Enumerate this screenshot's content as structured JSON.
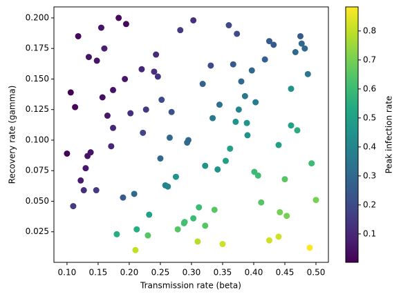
{
  "chart_data": {
    "type": "scatter",
    "x_label": "Transmission rate (beta)",
    "y_label": "Recovery rate (gamma)",
    "colorbar_label": "Peak infection rate",
    "colormap": "viridis",
    "x": [
      0.183,
      0.195,
      0.155,
      0.118,
      0.16,
      0.135,
      0.148,
      0.243,
      0.282,
      0.303,
      0.36,
      0.373,
      0.425,
      0.432,
      0.475,
      0.477,
      0.482,
      0.467,
      0.418,
      0.367,
      0.331,
      0.22,
      0.24,
      0.246,
      0.193,
      0.174,
      0.106,
      0.157,
      0.252,
      0.227,
      0.113,
      0.202,
      0.165,
      0.318,
      0.38,
      0.397,
      0.487,
      0.46,
      0.386,
      0.345,
      0.403,
      0.268,
      0.376,
      0.334,
      0.371,
      0.389,
      0.46,
      0.47,
      0.39,
      0.174,
      0.1,
      0.222,
      0.171,
      0.265,
      0.295,
      0.293,
      0.138,
      0.133,
      0.25,
      0.362,
      0.44,
      0.13,
      0.122,
      0.275,
      0.322,
      0.342,
      0.355,
      0.401,
      0.407,
      0.493,
      0.258,
      0.262,
      0.127,
      0.147,
      0.19,
      0.208,
      0.11,
      0.45,
      0.5,
      0.412,
      0.312,
      0.337,
      0.442,
      0.453,
      0.232,
      0.303,
      0.289,
      0.288,
      0.322,
      0.212,
      0.278,
      0.18,
      0.23,
      0.44,
      0.425,
      0.31,
      0.35,
      0.21,
      0.49
    ],
    "values": [
      0.2,
      0.195,
      0.192,
      0.185,
      0.175,
      0.168,
      0.165,
      0.17,
      0.19,
      0.198,
      0.194,
      0.187,
      0.181,
      0.178,
      0.185,
      0.179,
      0.175,
      0.172,
      0.166,
      0.162,
      0.161,
      0.158,
      0.156,
      0.152,
      0.15,
      0.141,
      0.139,
      0.135,
      0.133,
      0.125,
      0.127,
      0.122,
      0.12,
      0.146,
      0.148,
      0.157,
      0.154,
      0.142,
      0.136,
      0.129,
      0.131,
      0.123,
      0.125,
      0.118,
      0.115,
      0.114,
      0.112,
      0.108,
      0.104,
      0.11,
      0.089,
      0.106,
      0.095,
      0.102,
      0.1,
      0.098,
      0.09,
      0.087,
      0.085,
      0.093,
      0.096,
      0.077,
      0.067,
      0.07,
      0.079,
      0.076,
      0.083,
      0.074,
      0.071,
      0.081,
      0.063,
      0.062,
      0.059,
      0.059,
      0.053,
      0.056,
      0.046,
      0.068,
      0.051,
      0.049,
      0.045,
      0.043,
      0.041,
      0.038,
      0.039,
      0.036,
      0.033,
      0.032,
      0.03,
      0.027,
      0.027,
      0.023,
      0.022,
      0.021,
      0.018,
      0.017,
      0.015,
      0.01,
      0.012
    ],
    "color_values": [
      0.02,
      0.02,
      0.05,
      0.02,
      0.08,
      0.05,
      0.05,
      0.1,
      0.15,
      0.12,
      0.2,
      0.2,
      0.25,
      0.25,
      0.25,
      0.3,
      0.3,
      0.3,
      0.27,
      0.25,
      0.2,
      0.1,
      0.12,
      0.13,
      0.06,
      0.05,
      0.0,
      0.04,
      0.2,
      0.15,
      0.01,
      0.12,
      0.06,
      0.28,
      0.3,
      0.3,
      0.35,
      0.45,
      0.35,
      0.33,
      0.37,
      0.22,
      0.4,
      0.35,
      0.45,
      0.45,
      0.5,
      0.55,
      0.45,
      0.1,
      0.0,
      0.18,
      0.1,
      0.3,
      0.3,
      0.3,
      0.05,
      0.05,
      0.3,
      0.5,
      0.5,
      0.06,
      0.07,
      0.45,
      0.45,
      0.45,
      0.5,
      0.6,
      0.6,
      0.6,
      0.4,
      0.4,
      0.12,
      0.15,
      0.25,
      0.3,
      0.15,
      0.65,
      0.7,
      0.65,
      0.6,
      0.65,
      0.7,
      0.7,
      0.5,
      0.6,
      0.62,
      0.62,
      0.65,
      0.55,
      0.65,
      0.55,
      0.65,
      0.82,
      0.82,
      0.78,
      0.82,
      0.8,
      0.88
    ],
    "xlim": [
      0.079,
      0.52
    ],
    "ylim": [
      0.0,
      0.209
    ],
    "clim": [
      0.002,
      0.883
    ],
    "xticks": [
      {
        "value": 0.1,
        "label": "0.10"
      },
      0.15,
      {
        "value": 0.2,
        "label": "0.20"
      },
      0.25,
      {
        "value": 0.3,
        "label": "0.30"
      },
      0.35,
      {
        "value": 0.4,
        "label": "0.40"
      },
      0.45,
      {
        "value": 0.5,
        "label": "0.50"
      }
    ],
    "yticks": [
      0.025,
      {
        "value": 0.05,
        "label": "0.050"
      },
      0.075,
      {
        "value": 0.1,
        "label": "0.100"
      },
      0.125,
      {
        "value": 0.15,
        "label": "0.150"
      },
      0.175,
      {
        "value": 0.2,
        "label": "0.200"
      }
    ],
    "cticks": [
      0.1,
      0.2,
      0.3,
      0.4,
      0.5,
      0.6,
      0.7,
      0.8
    ]
  }
}
